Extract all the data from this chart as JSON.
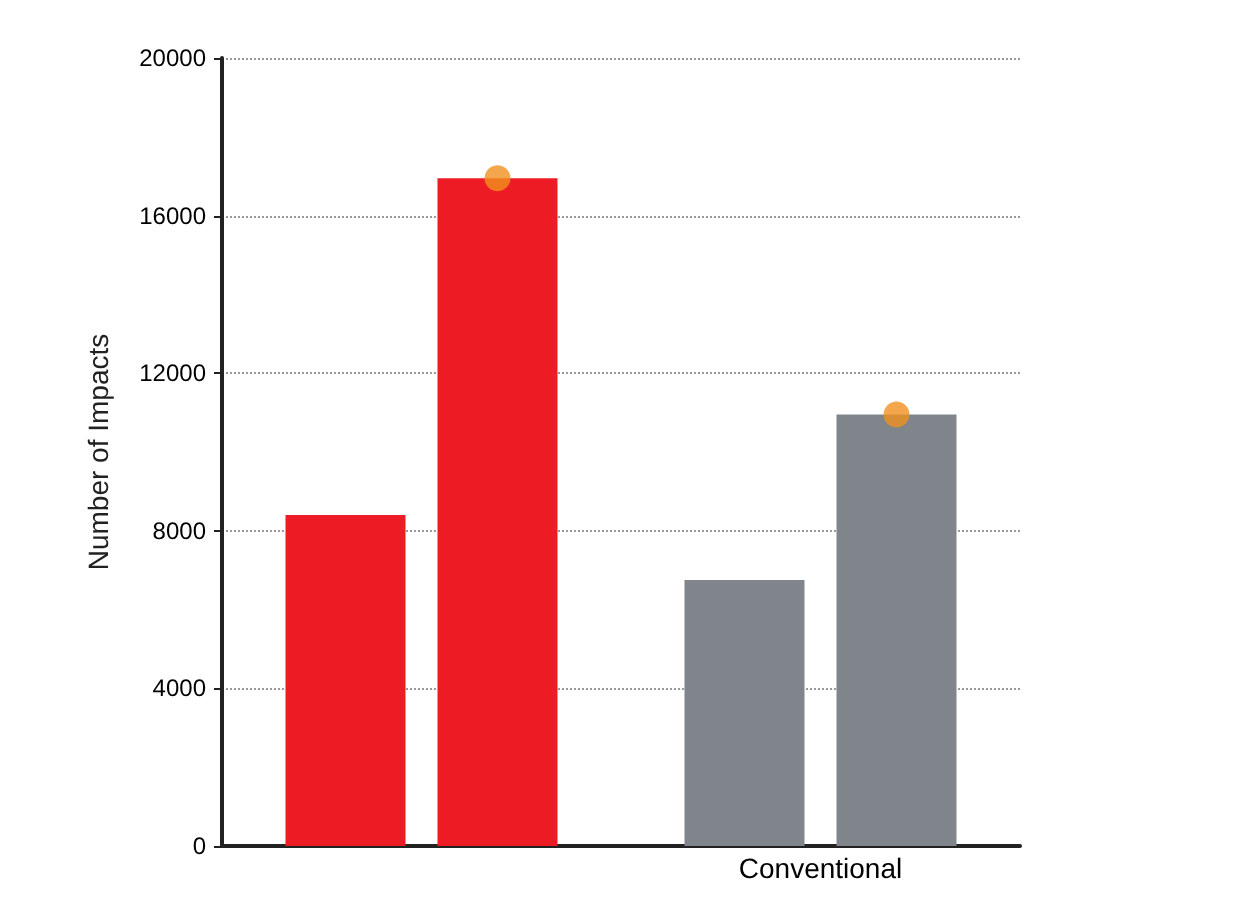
{
  "chart_data": {
    "type": "bar",
    "ylabel": "Number of Impacts",
    "categories": [
      null,
      "Conventional"
    ],
    "series": [
      {
        "colors": [
          "#ed1c24",
          "#7f858a"
        ],
        "values": [
          8400,
          6750
        ]
      },
      {
        "colors": [
          "#ed1c24",
          "#7f858a"
        ],
        "values": [
          16950,
          10950
        ]
      },
      {
        "type": "scatter",
        "color": "#f0901e",
        "marker": "circle",
        "values": [
          16950,
          10950
        ]
      }
    ],
    "ylim": [
      0,
      20000
    ],
    "yticks": [
      0,
      4000,
      8000,
      12000,
      16000,
      20000
    ],
    "grid": "y"
  }
}
